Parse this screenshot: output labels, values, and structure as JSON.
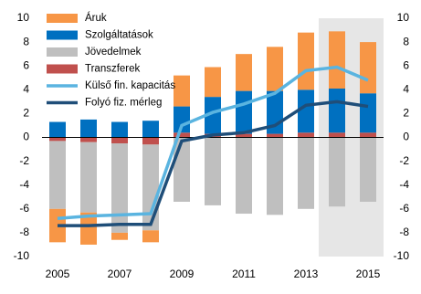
{
  "chart_data": {
    "type": "bar",
    "stacked": true,
    "categories": [
      "2005",
      null,
      "2007",
      null,
      "2009",
      null,
      "2011",
      null,
      "2013",
      null,
      "2015"
    ],
    "series": [
      {
        "name": "Áruk",
        "color": "#f79646",
        "values": [
          -2.8,
          -2.7,
          -0.6,
          -1.0,
          2.6,
          2.5,
          3.1,
          3.7,
          4.8,
          4.8,
          4.3
        ]
      },
      {
        "name": "Szolgáltatások",
        "color": "#0070c0",
        "values": [
          1.3,
          1.5,
          1.3,
          1.4,
          2.2,
          3.1,
          3.6,
          3.6,
          3.6,
          3.7,
          3.3
        ]
      },
      {
        "name": "Jövedelmek",
        "color": "#bfbfbf",
        "values": [
          -5.7,
          -5.9,
          -7.5,
          -7.2,
          -5.4,
          -5.7,
          -6.4,
          -6.5,
          -6.0,
          -5.8,
          -5.4
        ]
      },
      {
        "name": "Transzferek",
        "color": "#c0504d",
        "values": [
          -0.3,
          -0.4,
          -0.5,
          -0.6,
          0.4,
          0.3,
          0.3,
          0.3,
          0.4,
          0.4,
          0.4
        ]
      },
      {
        "name": "Külső fin. kapacitás",
        "type": "line",
        "color": "#5ab4e0",
        "values": [
          -6.8,
          -6.6,
          -6.5,
          -6.4,
          1.0,
          2.1,
          2.8,
          3.7,
          5.6,
          5.9,
          4.8
        ]
      },
      {
        "name": "Folyó fiz. mérleg",
        "type": "line",
        "color": "#1f4e79",
        "values": [
          -7.4,
          -7.4,
          -7.3,
          -7.3,
          -0.3,
          0.2,
          0.4,
          1.0,
          2.7,
          3.0,
          2.6
        ]
      }
    ],
    "ylim": [
      -10,
      10
    ],
    "yticks": [
      -10,
      -8,
      -6,
      -4,
      -2,
      0,
      2,
      4,
      6,
      8,
      10
    ],
    "y2lim": [
      -10,
      10
    ],
    "y2ticks": [
      -10,
      -8,
      -6,
      -4,
      -2,
      0,
      2,
      4,
      6,
      8,
      10
    ],
    "grid": false
  }
}
